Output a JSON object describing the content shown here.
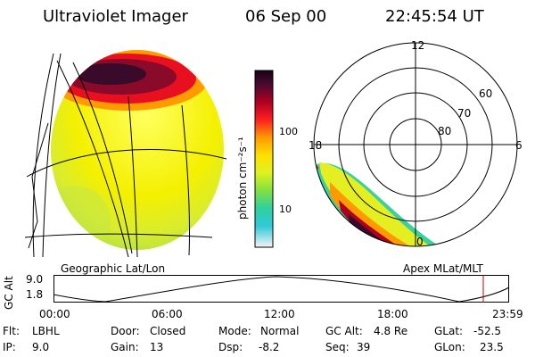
{
  "header": {
    "instrument": "Ultraviolet Imager",
    "date": "06 Sep 00",
    "time": "22:45:54 UT"
  },
  "colorbar": {
    "unit_label": "photon cm⁻²s⁻¹",
    "ticks": [
      "100",
      "10"
    ]
  },
  "polar_plot": {
    "mlt_labels": {
      "top": "12",
      "left": "18",
      "right": "6",
      "bottom": "0"
    },
    "lat_labels": [
      "60",
      "70",
      "80"
    ]
  },
  "panel_labels": {
    "left": "Geographic Lat/Lon",
    "right": "Apex MLat/MLT"
  },
  "altitude_plot": {
    "ylabel": "GC Alt",
    "y_ticks": [
      "9.0",
      "1.8"
    ],
    "x_ticks": [
      "00:00",
      "06:00",
      "12:00",
      "18:00",
      "23:59"
    ]
  },
  "info": {
    "flt": {
      "label": "Flt:",
      "value": "LBHL"
    },
    "ip": {
      "label": "IP:",
      "value": "9.0"
    },
    "door": {
      "label": "Door:",
      "value": "Closed"
    },
    "gain": {
      "label": "Gain:",
      "value": "13"
    },
    "mode": {
      "label": "Mode:",
      "value": "Normal"
    },
    "dsp": {
      "label": "Dsp:",
      "value": "-8.2"
    },
    "gc_alt": {
      "label": "GC Alt:",
      "value": "4.8 Re"
    },
    "seq": {
      "label": "Seq:",
      "value": "39"
    },
    "glat": {
      "label": "GLat:",
      "value": "-52.5"
    },
    "glon": {
      "label": "GLon:",
      "value": "23.5"
    }
  }
}
